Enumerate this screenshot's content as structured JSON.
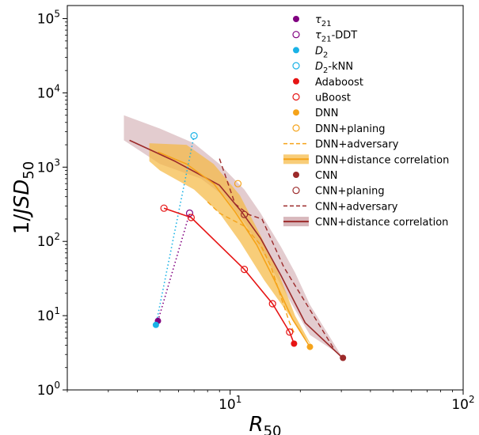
{
  "chart_data": {
    "type": "scatter",
    "xscale": "log",
    "yscale": "log",
    "xlim": [
      2,
      100
    ],
    "ylim": [
      1,
      150000
    ],
    "grid": false,
    "legend_position": "top-right",
    "xlabel": {
      "base": "R",
      "sub": "50"
    },
    "ylabel": {
      "prefix": "1/",
      "base": "JSD",
      "sub": "50"
    },
    "x_ticks": [
      {
        "value": 10,
        "base": "10",
        "exp": "1"
      },
      {
        "value": 100,
        "base": "10",
        "exp": "2"
      }
    ],
    "y_ticks": [
      {
        "value": 1,
        "base": "10",
        "exp": "0"
      },
      {
        "value": 10,
        "base": "10",
        "exp": "1"
      },
      {
        "value": 100,
        "base": "10",
        "exp": "2"
      },
      {
        "value": 1000,
        "base": "10",
        "exp": "3"
      },
      {
        "value": 10000,
        "base": "10",
        "exp": "4"
      },
      {
        "value": 100000,
        "base": "10",
        "exp": "5"
      }
    ],
    "colors": {
      "tau21": "#800080",
      "d2": "#1ab2e6",
      "adaboost": "#e61414",
      "dnn": "#f5a31a",
      "dnn_band": "#f5b840",
      "cnn": "#9c2a2a",
      "cnn_band": "#c89aa0"
    },
    "legend": [
      {
        "key": "tau21",
        "label": {
          "base": "τ",
          "sub": "21",
          "suffix": ""
        },
        "marker": "filled",
        "color": "#800080"
      },
      {
        "key": "tau21_ddt",
        "label": {
          "base": "τ",
          "sub": "21",
          "suffix": "-DDT"
        },
        "marker": "open",
        "color": "#800080"
      },
      {
        "key": "d2",
        "label": {
          "base": "D",
          "sub": "2",
          "suffix": ""
        },
        "marker": "filled",
        "color": "#1ab2e6"
      },
      {
        "key": "d2_knn",
        "label": {
          "base": "D",
          "sub": "2",
          "suffix": "-kNN"
        },
        "marker": "open",
        "color": "#1ab2e6"
      },
      {
        "key": "adaboost",
        "label": {
          "text": "Adaboost"
        },
        "marker": "filled",
        "color": "#e61414"
      },
      {
        "key": "uboost",
        "label": {
          "text": "uBoost"
        },
        "marker": "open",
        "color": "#e61414"
      },
      {
        "key": "dnn",
        "label": {
          "text": "DNN"
        },
        "marker": "filled",
        "color": "#f5a31a"
      },
      {
        "key": "dnn_planing",
        "label": {
          "text": "DNN+planing"
        },
        "marker": "open",
        "color": "#f5a31a"
      },
      {
        "key": "dnn_adversary",
        "label": {
          "text": "DNN+adversary"
        },
        "marker": "dashed",
        "color": "#f5a31a"
      },
      {
        "key": "dnn_distcorr",
        "label": {
          "text": "DNN+distance correlation"
        },
        "marker": "band",
        "color": "#f5a31a",
        "band": "#f5b840"
      },
      {
        "key": "cnn",
        "label": {
          "text": "CNN"
        },
        "marker": "filled",
        "color": "#9c2a2a"
      },
      {
        "key": "cnn_planing",
        "label": {
          "text": "CNN+planing"
        },
        "marker": "open",
        "color": "#9c2a2a"
      },
      {
        "key": "cnn_adversary",
        "label": {
          "text": "CNN+adversary"
        },
        "marker": "dashed",
        "color": "#9c2a2a"
      },
      {
        "key": "cnn_distcorr",
        "label": {
          "text": "CNN+distance correlation"
        },
        "marker": "band",
        "color": "#9c2a2a",
        "band": "#c89aa0"
      }
    ],
    "series": [
      {
        "key": "cnn_distcorr_band",
        "kind": "band",
        "color": "#c89aa0",
        "opacity": 0.5,
        "upper": [
          [
            3.5,
            5000
          ],
          [
            5,
            3300
          ],
          [
            7,
            2100
          ],
          [
            9,
            1100
          ],
          [
            11.5,
            500
          ],
          [
            13.5,
            240
          ],
          [
            16.5,
            85
          ],
          [
            19,
            38
          ],
          [
            22,
            14
          ],
          [
            30,
            2.9
          ]
        ],
        "lower": [
          [
            30,
            2.9
          ],
          [
            22,
            5.5
          ],
          [
            19,
            12
          ],
          [
            16.5,
            26
          ],
          [
            13.5,
            80
          ],
          [
            11.5,
            180
          ],
          [
            9.5,
            400
          ],
          [
            7.5,
            700
          ],
          [
            5,
            1100
          ],
          [
            3.5,
            2300
          ]
        ]
      },
      {
        "key": "dnn_distcorr_band",
        "kind": "band",
        "color": "#f5b840",
        "opacity": 0.7,
        "upper": [
          [
            4.5,
            2100
          ],
          [
            6.5,
            2000
          ],
          [
            8.5,
            1100
          ],
          [
            11,
            420
          ],
          [
            13.5,
            120
          ],
          [
            16,
            40
          ],
          [
            19,
            10
          ],
          [
            22.5,
            3.8
          ]
        ],
        "lower": [
          [
            22.5,
            3.8
          ],
          [
            21,
            5
          ],
          [
            18,
            10
          ],
          [
            14,
            30
          ],
          [
            11,
            100
          ],
          [
            9,
            240
          ],
          [
            7,
            500
          ],
          [
            5,
            900
          ],
          [
            4.5,
            1200
          ]
        ]
      },
      {
        "key": "cnn_distcorr",
        "kind": "line",
        "color": "#9c2a2a",
        "width": 1.6,
        "points": [
          [
            3.7,
            2300
          ],
          [
            5.8,
            1200
          ],
          [
            9,
            570
          ],
          [
            11.2,
            250
          ],
          [
            13.5,
            110
          ],
          [
            16.5,
            35
          ],
          [
            21,
            8
          ],
          [
            30,
            2.8
          ]
        ]
      },
      {
        "key": "dnn_distcorr",
        "kind": "line",
        "color": "#f5a31a",
        "width": 1.6,
        "points": [
          [
            4.9,
            1600
          ],
          [
            6.5,
            1100
          ],
          [
            8.5,
            600
          ],
          [
            10.5,
            250
          ],
          [
            13,
            90
          ],
          [
            15.5,
            30
          ],
          [
            18.5,
            9
          ],
          [
            22,
            3.8
          ]
        ]
      },
      {
        "key": "dnn_adversary",
        "kind": "line",
        "color": "#f5a31a",
        "dash": "6,4",
        "width": 1.4,
        "points": [
          [
            8,
            340
          ],
          [
            9,
            240
          ],
          [
            11.5,
            160
          ],
          [
            13.5,
            90
          ],
          [
            15,
            45
          ],
          [
            16.5,
            18
          ],
          [
            18,
            8
          ],
          [
            19,
            5.5
          ]
        ]
      },
      {
        "key": "cnn_adversary",
        "kind": "line",
        "color": "#9c2a2a",
        "dash": "6,4",
        "width": 1.4,
        "points": [
          [
            9,
            1300
          ],
          [
            10.5,
            320
          ],
          [
            12,
            230
          ],
          [
            13.7,
            200
          ],
          [
            17,
            45
          ],
          [
            22,
            12
          ],
          [
            28,
            3.5
          ]
        ]
      },
      {
        "key": "tau21_ddt",
        "kind": "line",
        "color": "#800080",
        "dash": "1.5,3",
        "width": 1.6,
        "points": [
          [
            4.9,
            8.5
          ],
          [
            6.7,
            240
          ]
        ]
      },
      {
        "key": "d2_knn",
        "kind": "line",
        "color": "#1ab2e6",
        "dash": "1.5,3",
        "width": 1.6,
        "points": [
          [
            4.8,
            7.5
          ],
          [
            7,
            2650
          ]
        ]
      },
      {
        "key": "uboost",
        "kind": "line",
        "color": "#e61414",
        "width": 1.6,
        "points": [
          [
            5.2,
            280
          ],
          [
            6.8,
            210
          ],
          [
            11.5,
            42
          ],
          [
            15.2,
            14.5
          ],
          [
            18,
            6
          ],
          [
            18.8,
            4.2
          ]
        ]
      },
      {
        "key": "tau21",
        "kind": "points",
        "color": "#800080",
        "fill": true,
        "points": [
          [
            4.9,
            8.5
          ]
        ]
      },
      {
        "key": "tau21_ddt",
        "kind": "points",
        "color": "#800080",
        "fill": false,
        "points": [
          [
            6.7,
            240
          ]
        ]
      },
      {
        "key": "d2",
        "kind": "points",
        "color": "#1ab2e6",
        "fill": true,
        "points": [
          [
            4.8,
            7.5
          ]
        ]
      },
      {
        "key": "d2_knn",
        "kind": "points",
        "color": "#1ab2e6",
        "fill": false,
        "points": [
          [
            7,
            2650
          ]
        ]
      },
      {
        "key": "adaboost",
        "kind": "points",
        "color": "#e61414",
        "fill": true,
        "points": [
          [
            18.8,
            4.2
          ]
        ]
      },
      {
        "key": "uboost",
        "kind": "points",
        "color": "#e61414",
        "fill": false,
        "points": [
          [
            5.2,
            280
          ],
          [
            6.8,
            210
          ],
          [
            11.5,
            42
          ],
          [
            15.2,
            14.5
          ],
          [
            18,
            6
          ]
        ]
      },
      {
        "key": "dnn",
        "kind": "points",
        "color": "#f5a31a",
        "fill": true,
        "points": [
          [
            22,
            3.8
          ]
        ]
      },
      {
        "key": "dnn_planing",
        "kind": "points",
        "color": "#f5a31a",
        "fill": false,
        "points": [
          [
            10.8,
            600
          ]
        ]
      },
      {
        "key": "cnn",
        "kind": "points",
        "color": "#9c2a2a",
        "fill": true,
        "points": [
          [
            30.5,
            2.7
          ]
        ]
      },
      {
        "key": "cnn_planing",
        "kind": "points",
        "color": "#9c2a2a",
        "fill": false,
        "points": [
          [
            11.5,
            230
          ]
        ]
      }
    ]
  }
}
